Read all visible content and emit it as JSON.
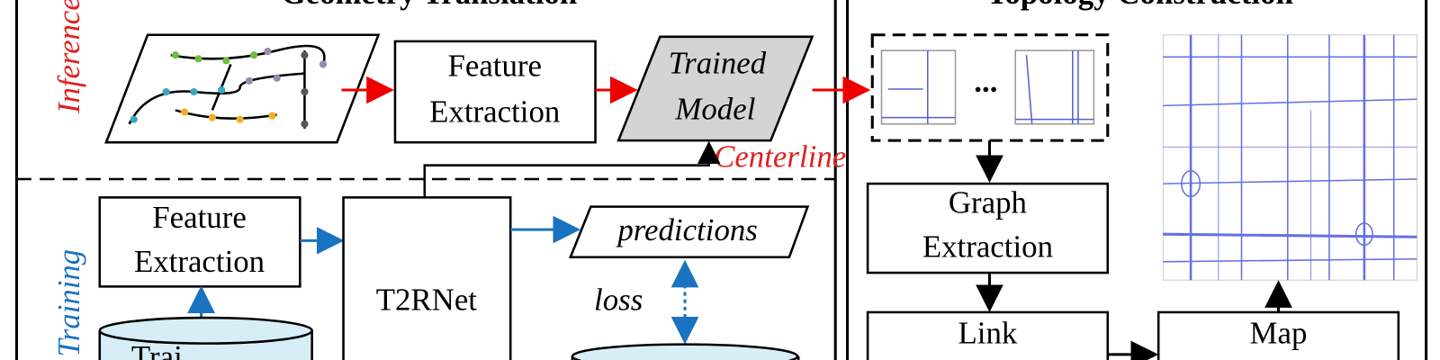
{
  "panels": {
    "left": {
      "title": "Geometry Translation",
      "inference": {
        "label": "Inference",
        "feature_box": [
          "Feature",
          "Extraction"
        ],
        "model_box": [
          "Trained",
          "Model"
        ],
        "centerline": "Centerline"
      },
      "training": {
        "label": "Training",
        "feature_box": [
          "Feature",
          "Extraction"
        ],
        "network": "T2RNet",
        "predictions": "predictions",
        "loss": "loss",
        "dataset": "Trai"
      }
    },
    "right": {
      "title": "Topology Construction",
      "ellipsis": "...",
      "graph_box": [
        "Graph",
        "Extraction"
      ],
      "link_box": "Link",
      "map_box": "Map"
    }
  }
}
